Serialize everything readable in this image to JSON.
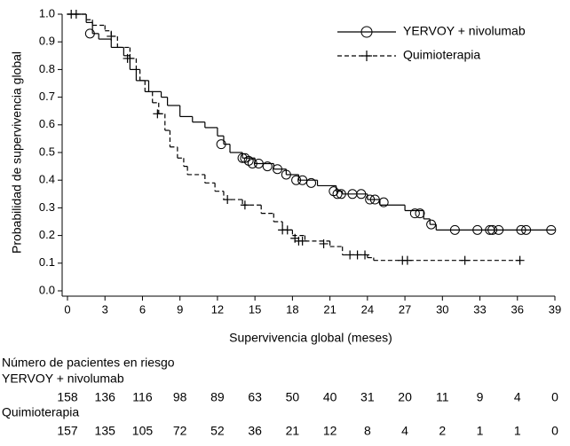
{
  "chart_data": {
    "type": "step",
    "xlabel": "Supervivencia global (meses)",
    "ylabel": "Probabilidad de supervivencia global",
    "xlim": [
      0,
      39
    ],
    "ylim": [
      0,
      1.0
    ],
    "xticks": [
      0,
      3,
      6,
      9,
      12,
      15,
      18,
      21,
      24,
      27,
      30,
      33,
      36,
      39
    ],
    "yticks": [
      {
        "value": 0,
        "label": "0.0"
      },
      0.1,
      0.2,
      0.3,
      0.4,
      0.5,
      0.6,
      0.7,
      0.8,
      0.9,
      {
        "value": 1,
        "label": "1.0"
      }
    ],
    "legend": "upper right",
    "series": [
      {
        "name": "YERVOY + nivolumab",
        "color": "#000000",
        "dashed": false,
        "marker": "circle",
        "x": [
          0,
          1.5,
          2,
          2.5,
          3.5,
          4.5,
          5,
          5.5,
          6.5,
          7.5,
          8,
          9,
          10,
          11,
          12,
          12.5,
          13,
          14,
          15,
          16.5,
          17.5,
          18.5,
          20,
          21.5,
          22,
          24,
          25,
          27,
          28.5,
          29,
          29.5,
          39
        ],
        "values": [
          1.0,
          0.97,
          0.93,
          0.91,
          0.88,
          0.85,
          0.8,
          0.76,
          0.72,
          0.7,
          0.67,
          0.63,
          0.61,
          0.59,
          0.56,
          0.53,
          0.5,
          0.48,
          0.46,
          0.44,
          0.42,
          0.4,
          0.38,
          0.36,
          0.35,
          0.33,
          0.31,
          0.29,
          0.26,
          0.24,
          0.22,
          0.22
        ],
        "censored_x": [
          1.8,
          12.3,
          14,
          14.2,
          14.5,
          14.8,
          15.3,
          16,
          16.8,
          17.5,
          18.3,
          18.8,
          19.5,
          21.3,
          21.6,
          21.9,
          22.8,
          23.5,
          24.2,
          24.6,
          25.3,
          27.8,
          28.2,
          29.1,
          31,
          32.8,
          33.8,
          34,
          34.5,
          36.3,
          36.7,
          38.7
        ],
        "censored_values": [
          0.93,
          0.53,
          0.48,
          0.48,
          0.47,
          0.46,
          0.46,
          0.45,
          0.44,
          0.42,
          0.4,
          0.4,
          0.39,
          0.36,
          0.35,
          0.35,
          0.35,
          0.35,
          0.33,
          0.33,
          0.32,
          0.28,
          0.28,
          0.24,
          0.22,
          0.22,
          0.22,
          0.22,
          0.22,
          0.22,
          0.22,
          0.22
        ]
      },
      {
        "name": "Quimioterapia",
        "color": "#000000",
        "dashed": true,
        "marker": "plus",
        "x": [
          0,
          1.5,
          2,
          3,
          3.5,
          4,
          5,
          5.5,
          5.8,
          6.2,
          6.8,
          7.3,
          7.8,
          8.2,
          8.8,
          9.3,
          9.6,
          11,
          11.8,
          12.5,
          14,
          15.5,
          16.5,
          17.2,
          18,
          19,
          21,
          22,
          24,
          24.5,
          36.2
        ],
        "values": [
          1.0,
          0.98,
          0.96,
          0.94,
          0.92,
          0.88,
          0.84,
          0.8,
          0.76,
          0.72,
          0.68,
          0.64,
          0.58,
          0.52,
          0.48,
          0.45,
          0.42,
          0.39,
          0.36,
          0.33,
          0.31,
          0.28,
          0.25,
          0.22,
          0.2,
          0.18,
          0.16,
          0.13,
          0.12,
          0.11,
          0.11
        ],
        "censored_x": [
          0.3,
          0.7,
          3.5,
          4.8,
          5,
          7.2,
          12.8,
          14.2,
          17.2,
          17.6,
          18.2,
          18.5,
          18.8,
          20.5,
          22.6,
          23.2,
          23.8,
          26.8,
          27.2,
          31.8,
          36.2
        ],
        "censored_values": [
          1.0,
          1.0,
          0.92,
          0.84,
          0.84,
          0.64,
          0.33,
          0.31,
          0.22,
          0.22,
          0.19,
          0.18,
          0.18,
          0.17,
          0.13,
          0.13,
          0.13,
          0.11,
          0.11,
          0.11,
          0.11
        ]
      }
    ],
    "risk_table": {
      "title": "Número de pacientes en riesgo",
      "rows": [
        {
          "name": "YERVOY + nivolumab",
          "values": [
            158,
            136,
            116,
            98,
            89,
            63,
            50,
            40,
            31,
            20,
            11,
            9,
            4,
            0
          ]
        },
        {
          "name": "Quimioterapia",
          "values": [
            157,
            135,
            105,
            72,
            52,
            36,
            21,
            12,
            8,
            4,
            2,
            1,
            1,
            0
          ]
        }
      ]
    }
  }
}
